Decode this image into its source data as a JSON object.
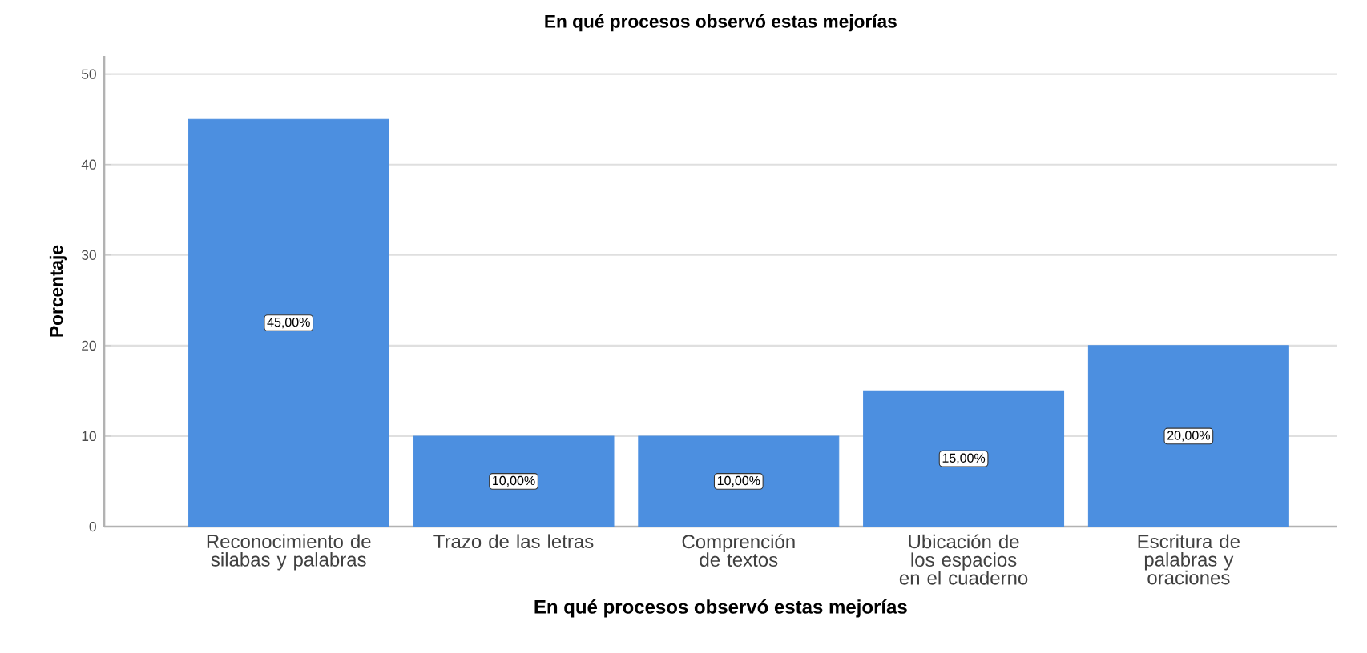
{
  "chart_data": {
    "type": "bar",
    "title": "En qué procesos observó estas mejorías",
    "xlabel": "En qué procesos observó estas mejorías",
    "ylabel": "Porcentaje",
    "categories": [
      "Reconocimiento de silabas y palabras",
      "Trazo de las letras",
      "Comprención de textos",
      "Ubicación de los espacios en el cuaderno",
      "Escritura de palabras y oraciones"
    ],
    "values": [
      45,
      10,
      10,
      15,
      20
    ],
    "value_labels": [
      "45,00%",
      "10,00%",
      "10,00%",
      "15,00%",
      "20,00%"
    ],
    "color": "#4c8fe0",
    "ylim": [
      0,
      52
    ],
    "yticks": [
      0,
      10,
      20,
      30,
      40,
      50
    ],
    "grid": "y"
  }
}
